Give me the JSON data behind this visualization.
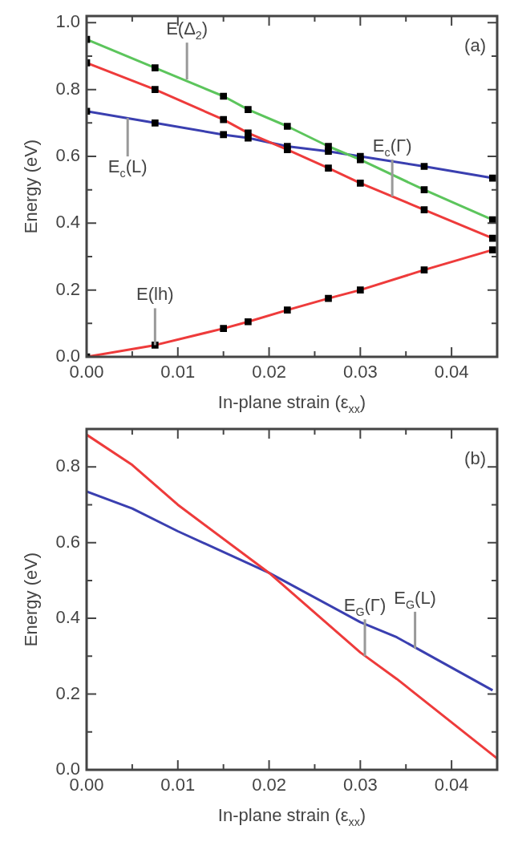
{
  "chart_data": [
    {
      "type": "line",
      "xlabel": "In-plane strain (ε$_{xx}$)",
      "ylabel": "Energy (eV)",
      "marker": "square",
      "grid": false,
      "legend": false,
      "x": [
        0,
        0.0075,
        0.015,
        0.0177,
        0.022,
        0.0265,
        0.03,
        0.037,
        0.0445
      ],
      "series": [
        {
          "color": "#5cc55c",
          "values": [
            0.95,
            0.865,
            0.78,
            0.74,
            0.69,
            0.63,
            0.59,
            0.5,
            0.41
          ]
        },
        {
          "color": "#ee3b3b",
          "values": [
            0.88,
            0.8,
            0.71,
            0.67,
            0.62,
            0.565,
            0.52,
            0.44,
            0.355
          ]
        },
        {
          "color": "#3a3fb0",
          "values": [
            0.735,
            0.7,
            0.665,
            0.655,
            0.63,
            0.615,
            0.6,
            0.57,
            0.535
          ]
        },
        {
          "color": "#ee3b3b",
          "values": [
            0,
            0.035,
            0.085,
            0.105,
            0.14,
            0.175,
            0.2,
            0.26,
            0.32
          ]
        }
      ],
      "xlim": [
        0,
        0.045
      ],
      "ylim": [
        0,
        1.02
      ],
      "xticks": [
        {
          "value": 0,
          "label": "0.00"
        },
        {
          "value": 0.005,
          "label": null
        },
        {
          "value": 0.01,
          "label": "0.01"
        },
        {
          "value": 0.015,
          "label": null
        },
        {
          "value": 0.02,
          "label": "0.02"
        },
        {
          "value": 0.025,
          "label": null
        },
        {
          "value": 0.03,
          "label": "0.03"
        },
        {
          "value": 0.035,
          "label": null
        },
        {
          "value": 0.04,
          "label": "0.04"
        }
      ],
      "yticks": [
        {
          "value": 0,
          "label": "0.0"
        },
        {
          "value": 0.1,
          "label": null
        },
        {
          "value": 0.2,
          "label": "0.2"
        },
        {
          "value": 0.3,
          "label": null
        },
        {
          "value": 0.4,
          "label": "0.4"
        },
        {
          "value": 0.5,
          "label": null
        },
        {
          "value": 0.6,
          "label": "0.6"
        },
        {
          "value": 0.7,
          "label": null
        },
        {
          "value": 0.8,
          "label": "0.8"
        },
        {
          "value": 0.9,
          "label": null
        },
        {
          "value": 1.0,
          "label": "1.0"
        }
      ],
      "annotations": [
        "(a)",
        {
          "text": "E(Δ$_{2}$)",
          "x": 0.011,
          "y": 0.83
        },
        {
          "text": "E$_{c}$(L)",
          "x": 0.0045,
          "y": 0.715
        },
        {
          "text": "E$_{c}$(Γ)",
          "x": 0.0335,
          "y": 0.48
        },
        {
          "text": "E(lh)",
          "x": 0.0075,
          "y": 0.035
        }
      ]
    },
    {
      "type": "line",
      "xlabel": "In-plane strain (ε$_{xx}$)",
      "ylabel": "Energy (eV)",
      "marker": "none",
      "grid": false,
      "legend": false,
      "series": [
        {
          "color": "#ee3b3b",
          "x": [
            0,
            0.005,
            0.01,
            0.02,
            0.03,
            0.034,
            0.045
          ],
          "values": [
            0.885,
            0.805,
            0.7,
            0.52,
            0.31,
            0.24,
            0.03
          ]
        },
        {
          "color": "#3a3fb0",
          "x": [
            0,
            0.005,
            0.01,
            0.02,
            0.03,
            0.034,
            0.037,
            0.0445
          ],
          "values": [
            0.735,
            0.69,
            0.63,
            0.52,
            0.39,
            0.35,
            0.31,
            0.21
          ]
        }
      ],
      "xlim": [
        0,
        0.045
      ],
      "ylim": [
        0,
        0.9
      ],
      "xticks": [
        {
          "value": 0,
          "label": "0.00"
        },
        {
          "value": 0.005,
          "label": null
        },
        {
          "value": 0.01,
          "label": "0.01"
        },
        {
          "value": 0.015,
          "label": null
        },
        {
          "value": 0.02,
          "label": "0.02"
        },
        {
          "value": 0.025,
          "label": null
        },
        {
          "value": 0.03,
          "label": "0.03"
        },
        {
          "value": 0.035,
          "label": null
        },
        {
          "value": 0.04,
          "label": "0.04"
        }
      ],
      "yticks": [
        {
          "value": 0,
          "label": "0.0"
        },
        {
          "value": 0.1,
          "label": null
        },
        {
          "value": 0.2,
          "label": "0.2"
        },
        {
          "value": 0.3,
          "label": null
        },
        {
          "value": 0.4,
          "label": "0.4"
        },
        {
          "value": 0.5,
          "label": null
        },
        {
          "value": 0.6,
          "label": "0.6"
        },
        {
          "value": 0.7,
          "label": null
        },
        {
          "value": 0.8,
          "label": "0.8"
        }
      ],
      "annotations": [
        "(b)",
        {
          "text": "E$_{G}$(L)",
          "x": 0.036,
          "y": 0.32
        },
        {
          "text": "E$_{G}$(Γ)",
          "x": 0.0305,
          "y": 0.3
        }
      ]
    }
  ]
}
